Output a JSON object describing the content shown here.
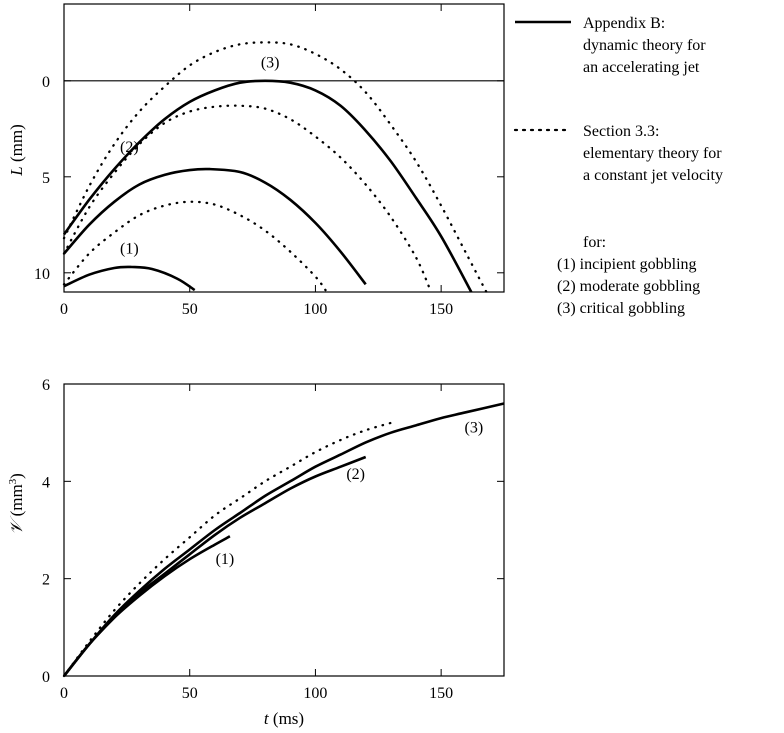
{
  "colors": {
    "line": "#000000",
    "background": "#ffffff"
  },
  "legend": {
    "solid_title": "Appendix B:",
    "solid_desc": [
      "dynamic theory for",
      "an accelerating jet"
    ],
    "dotted_title": "Section 3.3:",
    "dotted_desc": [
      "elementary theory for",
      "a constant jet velocity"
    ],
    "for_label": "for:",
    "cases": [
      "(1) incipient gobbling",
      "(2) moderate gobbling",
      "(3) critical gobbling"
    ]
  },
  "chart_data": [
    {
      "type": "line",
      "panel": "top",
      "ylabel_var": "L",
      "ylabel_unit": "(mm)",
      "xlim": [
        0,
        175
      ],
      "ylim": [
        11,
        -4
      ],
      "y_inverted": true,
      "xticks": [
        0,
        50,
        100,
        150
      ],
      "yticks": [
        0,
        5,
        10
      ],
      "reference_line_y": 0,
      "legend_position": "right",
      "annotations": [
        {
          "text": "(1)",
          "x": 26,
          "y": 9.0
        },
        {
          "text": "(2)",
          "x": 26,
          "y": 3.7
        },
        {
          "text": "(3)",
          "x": 82,
          "y": -0.7
        }
      ],
      "series": [
        {
          "style": "solid",
          "x": [
            0,
            10,
            20,
            27,
            35,
            45,
            52
          ],
          "y": [
            10.7,
            10.1,
            9.75,
            9.7,
            9.8,
            10.3,
            10.9
          ]
        },
        {
          "style": "solid",
          "x": [
            0,
            10,
            20,
            30,
            40,
            50,
            58,
            70,
            80,
            90,
            100,
            110,
            120
          ],
          "y": [
            9.0,
            7.5,
            6.3,
            5.4,
            4.9,
            4.65,
            4.6,
            4.75,
            5.3,
            6.2,
            7.4,
            8.9,
            10.6
          ]
        },
        {
          "style": "solid",
          "x": [
            0,
            10,
            20,
            30,
            40,
            50,
            60,
            70,
            80,
            90,
            100,
            110,
            120,
            130,
            140,
            150,
            162
          ],
          "y": [
            8.0,
            6.2,
            4.6,
            3.2,
            2.0,
            1.1,
            0.5,
            0.1,
            0.0,
            0.1,
            0.5,
            1.3,
            2.6,
            4.2,
            6.1,
            8.1,
            11.0
          ]
        },
        {
          "style": "dotted",
          "x": [
            0,
            10,
            20,
            30,
            40,
            50,
            60,
            70,
            80,
            90,
            100,
            104
          ],
          "y": [
            10.6,
            9.0,
            7.9,
            7.0,
            6.5,
            6.3,
            6.45,
            7.0,
            7.8,
            8.9,
            10.2,
            10.9
          ]
        },
        {
          "style": "dotted",
          "x": [
            0,
            10,
            20,
            30,
            40,
            50,
            60,
            70,
            80,
            90,
            100,
            110,
            120,
            130,
            140,
            146
          ],
          "y": [
            9.0,
            6.6,
            4.8,
            3.3,
            2.2,
            1.6,
            1.35,
            1.3,
            1.45,
            2.0,
            2.9,
            4.0,
            5.4,
            7.1,
            9.2,
            11.0
          ]
        },
        {
          "style": "dotted",
          "x": [
            0,
            10,
            20,
            30,
            40,
            50,
            60,
            70,
            80,
            90,
            100,
            110,
            120,
            130,
            140,
            150,
            160,
            168
          ],
          "y": [
            8.2,
            5.5,
            3.3,
            1.6,
            0.3,
            -0.8,
            -1.5,
            -1.9,
            -2.0,
            -1.9,
            -1.4,
            -0.6,
            0.6,
            2.3,
            4.2,
            6.5,
            9.0,
            11.0
          ]
        }
      ]
    },
    {
      "type": "line",
      "panel": "bottom",
      "xlabel_var": "t",
      "xlabel_unit": "(ms)",
      "ylabel_var": "𝒱",
      "ylabel_unit_pre": "(mm",
      "ylabel_unit_exp": "3",
      "ylabel_unit_post": ")",
      "xlim": [
        0,
        175
      ],
      "ylim": [
        0,
        6
      ],
      "xticks": [
        0,
        50,
        100,
        150
      ],
      "yticks": [
        0,
        2,
        4,
        6
      ],
      "annotations": [
        {
          "text": "(1)",
          "x": 64,
          "y": 2.3
        },
        {
          "text": "(2)",
          "x": 116,
          "y": 4.05
        },
        {
          "text": "(3)",
          "x": 163,
          "y": 5.0
        }
      ],
      "series": [
        {
          "style": "solid",
          "x": [
            0,
            10,
            20,
            30,
            40,
            50,
            60,
            66
          ],
          "y": [
            0,
            0.65,
            1.2,
            1.65,
            2.05,
            2.4,
            2.7,
            2.87
          ]
        },
        {
          "style": "solid",
          "x": [
            0,
            10,
            20,
            30,
            40,
            50,
            60,
            70,
            80,
            90,
            100,
            110,
            120
          ],
          "y": [
            0,
            0.65,
            1.2,
            1.7,
            2.1,
            2.5,
            2.9,
            3.25,
            3.55,
            3.85,
            4.1,
            4.3,
            4.5
          ]
        },
        {
          "style": "solid",
          "x": [
            0,
            10,
            20,
            30,
            40,
            50,
            60,
            70,
            80,
            90,
            100,
            110,
            120,
            130,
            140,
            150,
            160,
            175
          ],
          "y": [
            0,
            0.65,
            1.25,
            1.75,
            2.2,
            2.6,
            3.0,
            3.35,
            3.7,
            4.0,
            4.3,
            4.55,
            4.8,
            5.0,
            5.15,
            5.3,
            5.42,
            5.6
          ]
        },
        {
          "style": "dotted",
          "x": [
            0,
            10,
            20,
            30,
            40,
            50,
            60,
            70,
            80,
            90,
            100,
            110,
            120,
            130
          ],
          "y": [
            0,
            0.7,
            1.35,
            1.9,
            2.4,
            2.85,
            3.3,
            3.65,
            4.0,
            4.3,
            4.6,
            4.85,
            5.05,
            5.2
          ]
        }
      ]
    }
  ]
}
